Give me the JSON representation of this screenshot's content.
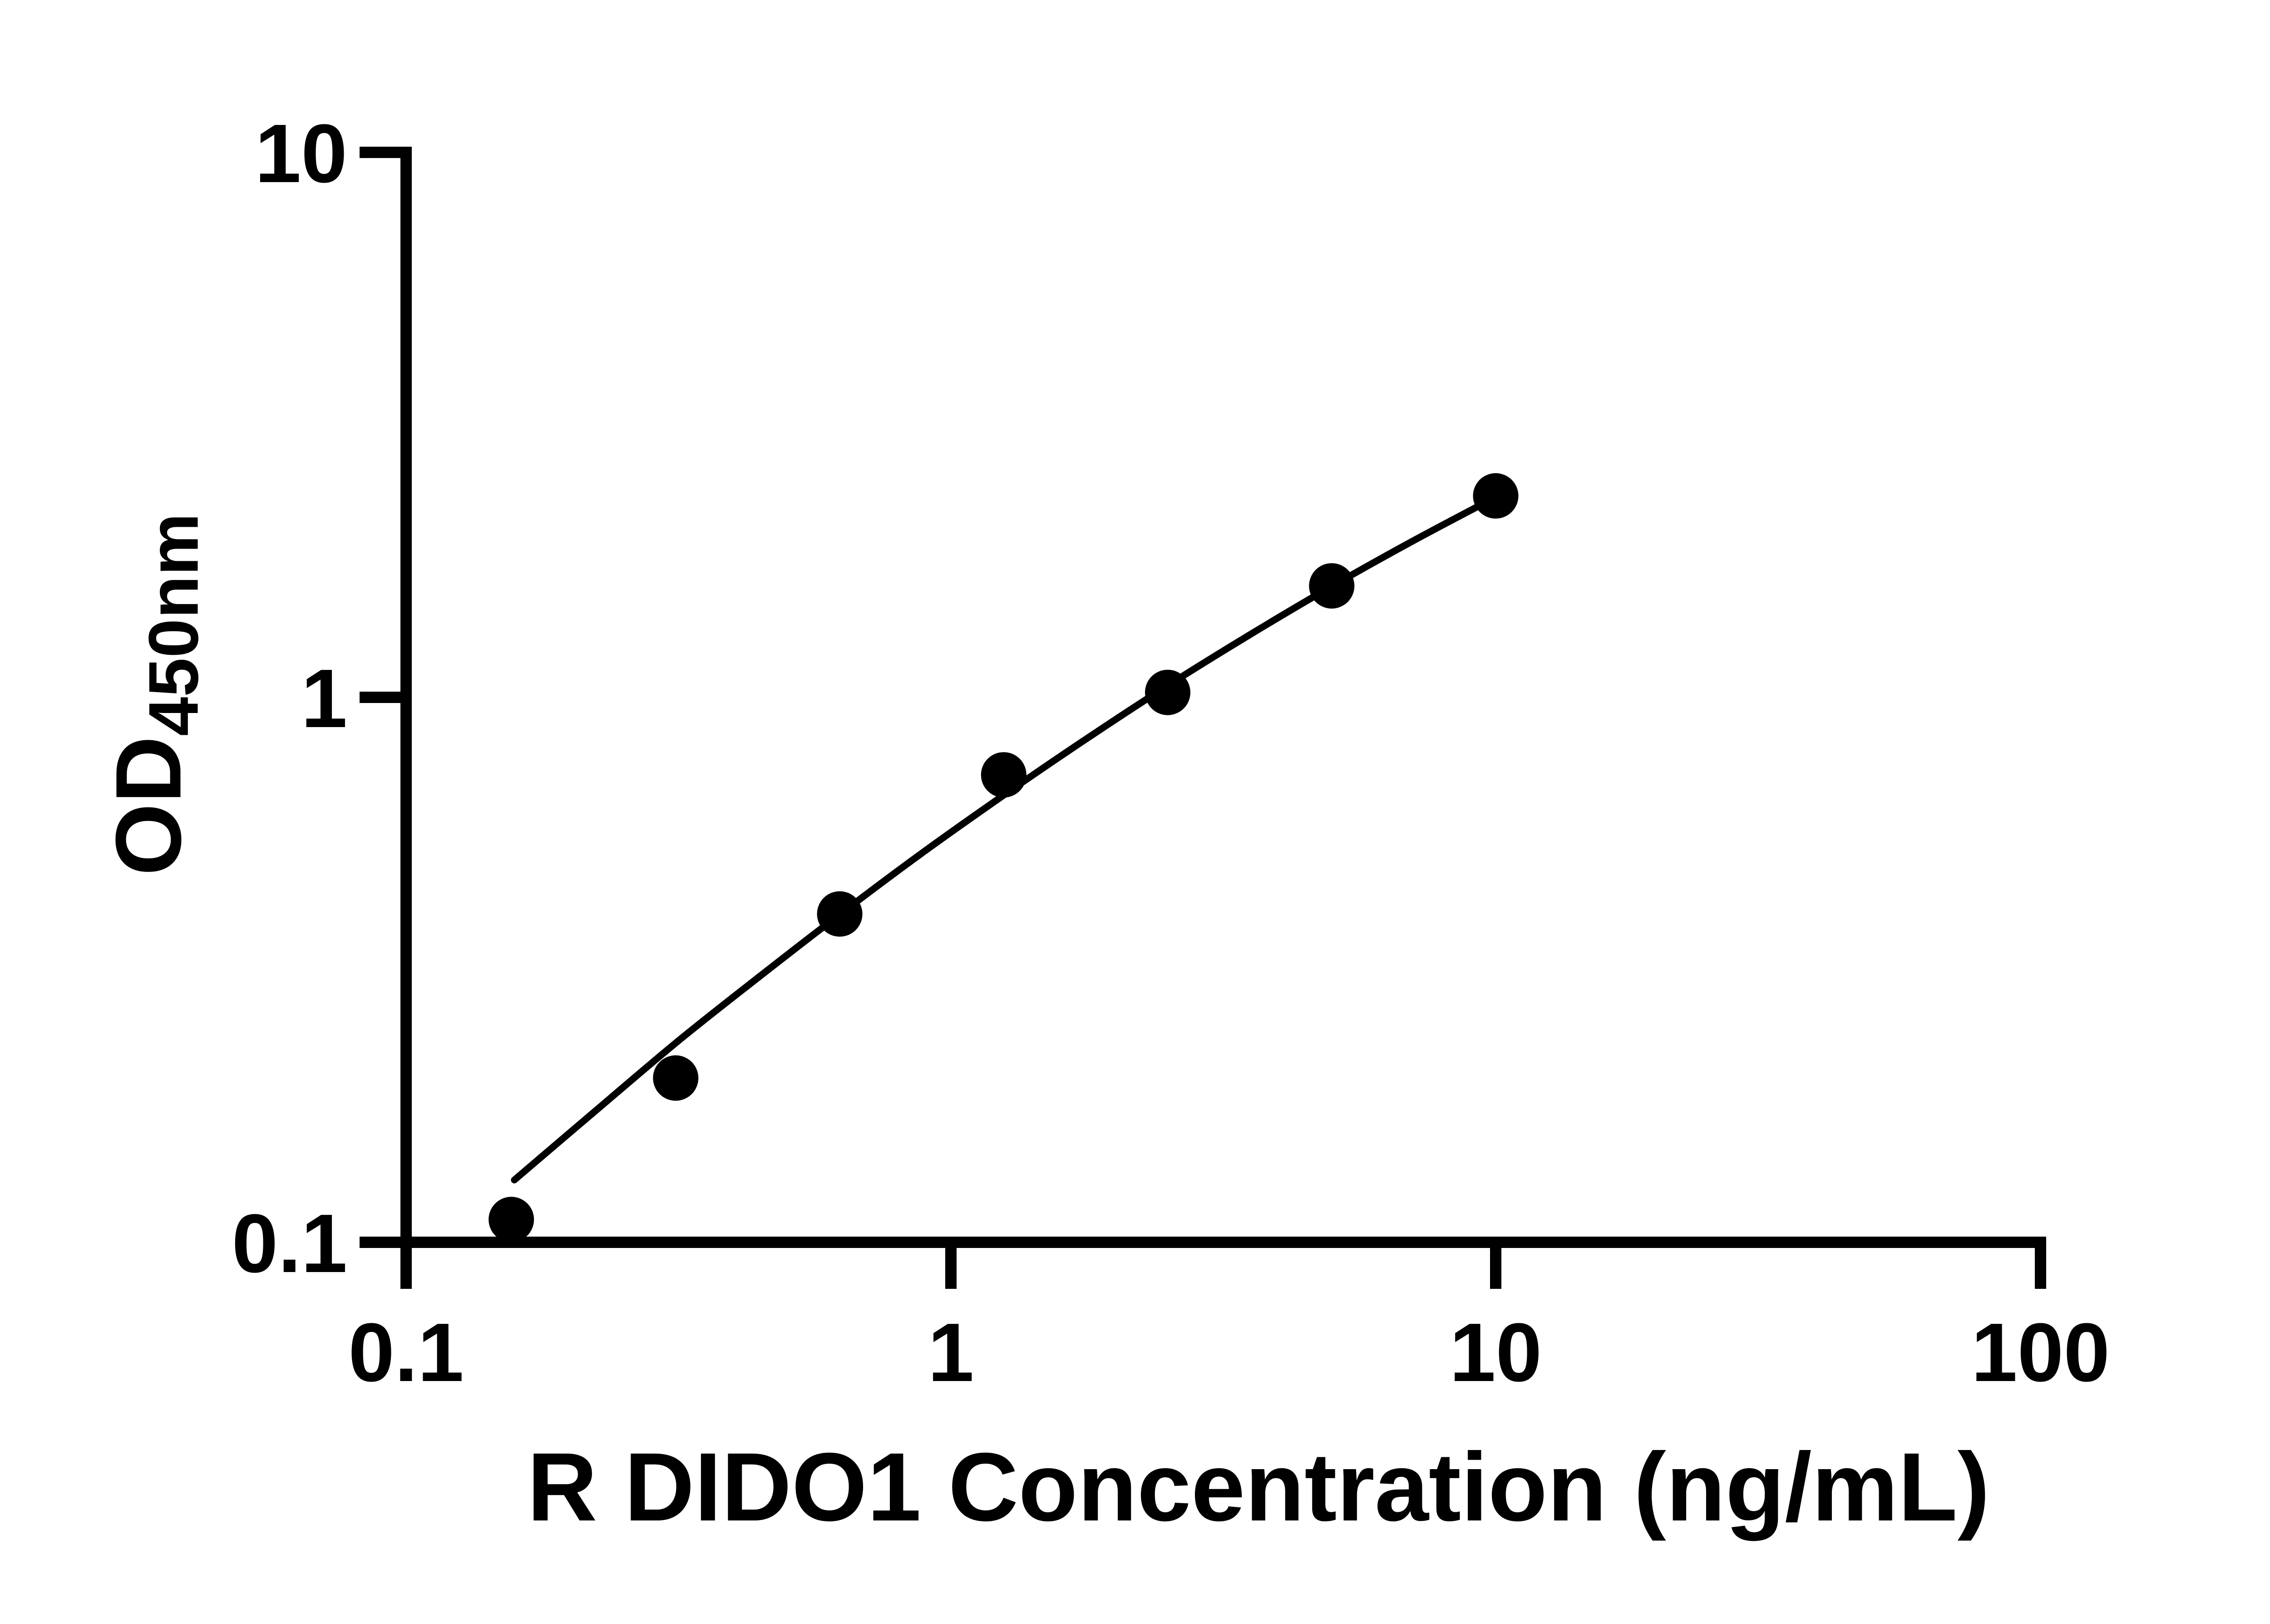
{
  "chart_data": {
    "type": "scatter",
    "title": "",
    "xlabel": "R DIDO1 Concentration (ng/mL)",
    "ylabel": "OD450nm",
    "ylabel_main": "OD",
    "ylabel_sub": "450nm",
    "x_scale": "log10",
    "y_scale": "log10",
    "xlim": [
      0.1,
      100
    ],
    "ylim": [
      0.1,
      10
    ],
    "grid": false,
    "legend": false,
    "x_tick_values": [
      0.1,
      1,
      10,
      100
    ],
    "x_tick_labels": [
      "0.1",
      "1",
      "10",
      "100"
    ],
    "y_tick_values": [
      0.1,
      1,
      10
    ],
    "y_tick_labels": [
      "0.1",
      "1",
      "10"
    ],
    "series": [
      {
        "marker": "filled-circle",
        "color": "#000000",
        "x": [
          0.156,
          0.3125,
          0.625,
          1.25,
          2.5,
          5,
          10
        ],
        "y": [
          0.11,
          0.2,
          0.4,
          0.72,
          1.02,
          1.6,
          2.34
        ]
      }
    ],
    "fit_curve": {
      "color": "#000000",
      "points_x": [
        0.158,
        0.224,
        0.316,
        0.447,
        0.631,
        0.891,
        1.259,
        1.778,
        2.512,
        3.548,
        5.012,
        7.079,
        10.0
      ],
      "points_y": [
        0.13,
        0.175,
        0.234,
        0.308,
        0.402,
        0.52,
        0.664,
        0.84,
        1.053,
        1.304,
        1.599,
        1.939,
        2.328
      ]
    },
    "colors": {
      "ink": "#000000",
      "background": "#ffffff"
    }
  }
}
